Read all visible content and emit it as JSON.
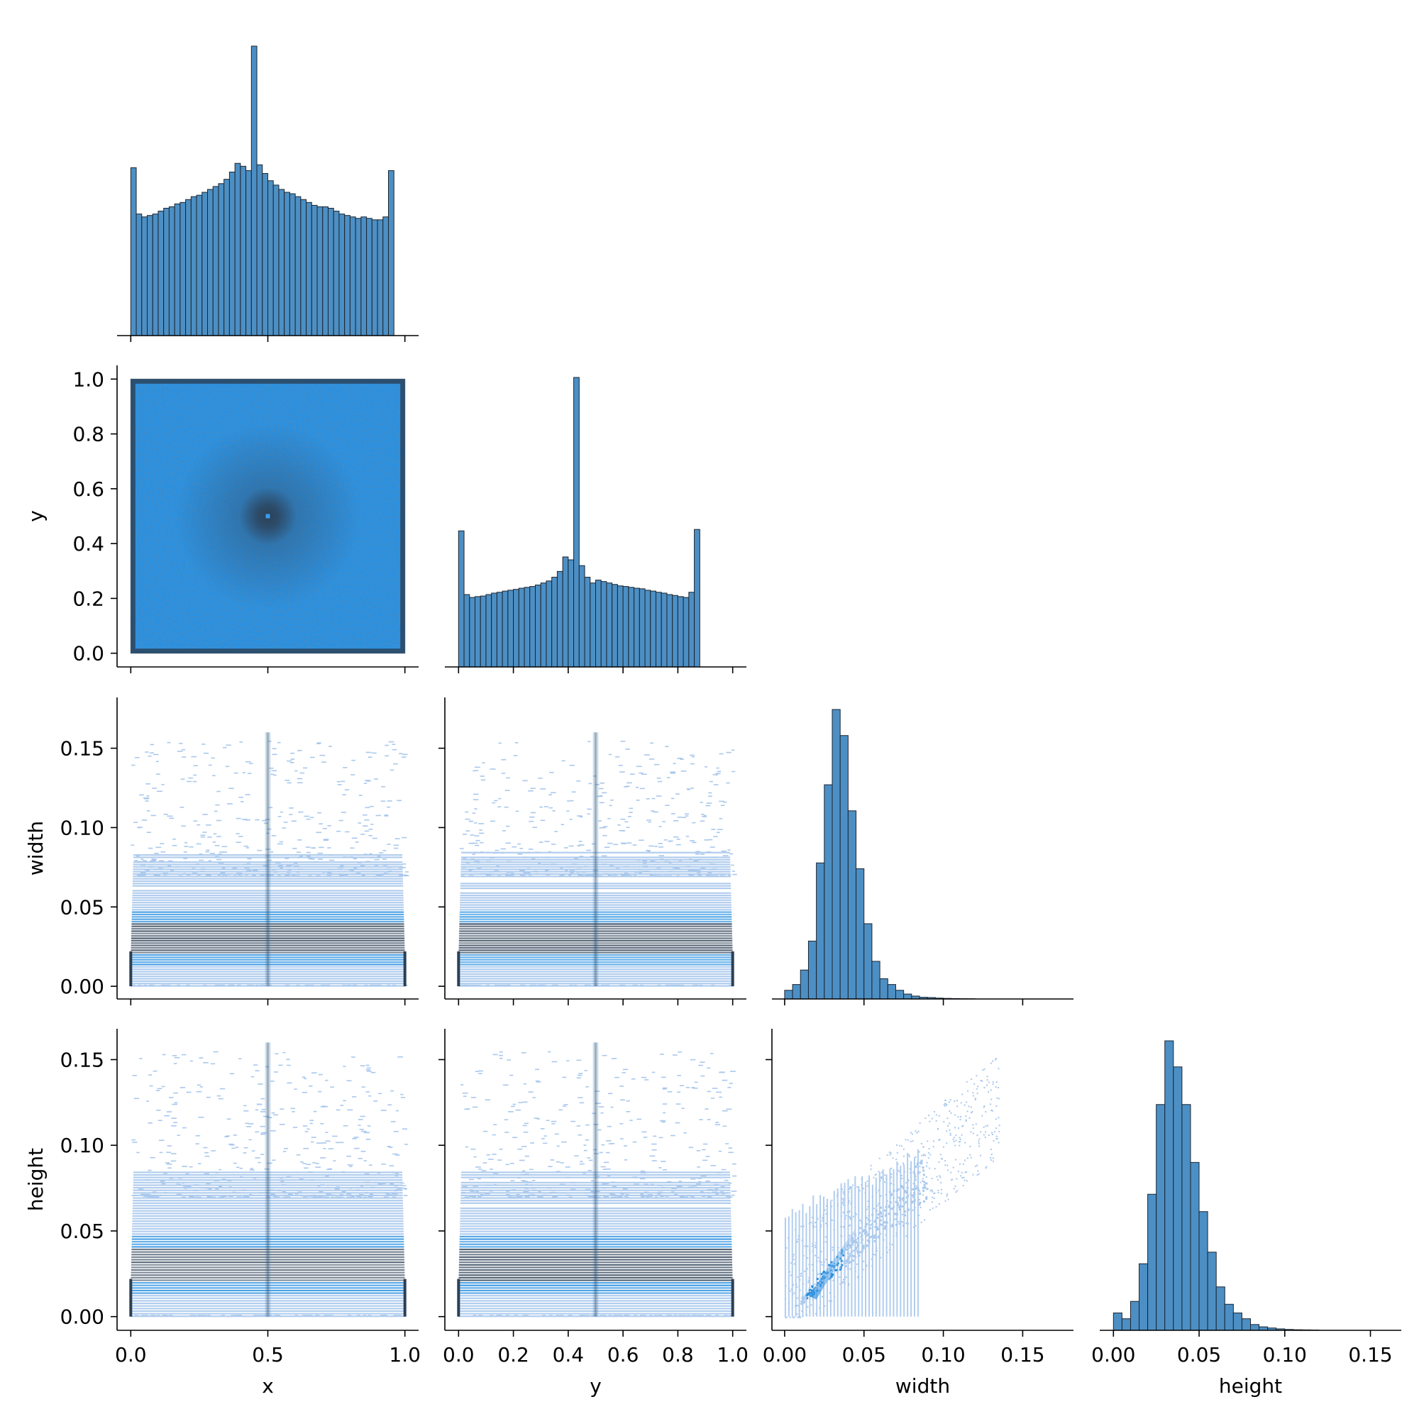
{
  "chart_data": {
    "type": "pairplot",
    "corner": true,
    "variables": [
      "x",
      "y",
      "width",
      "height"
    ],
    "colors": {
      "hist_fill": "#4c8fc4",
      "hist_edge": "#1c2530",
      "heat_low": "#a9c8ec",
      "heat_mid": "#2a90e0",
      "heat_high": "#2b3f55"
    },
    "axes": {
      "x": {
        "label": "x",
        "range": [
          -0.05,
          1.05
        ],
        "ticks": [
          0.0,
          0.5,
          1.0
        ],
        "tick_labels": [
          "0.0",
          "0.5",
          "1.0"
        ]
      },
      "y": {
        "label": "y",
        "range": [
          -0.05,
          1.05
        ],
        "ticks": [
          0.0,
          0.2,
          0.4,
          0.6,
          0.8,
          1.0
        ],
        "tick_labels": [
          "0.0",
          "0.2",
          "0.4",
          "0.6",
          "0.8",
          "1.0"
        ]
      },
      "width": {
        "label": "width",
        "range": [
          -0.008,
          0.182
        ],
        "ticks": [
          0.0,
          0.05,
          0.1,
          0.15
        ],
        "tick_labels": [
          "0.00",
          "0.05",
          "0.10",
          "0.15"
        ]
      },
      "height": {
        "label": "height",
        "range": [
          -0.008,
          0.168
        ],
        "ticks": [
          0.0,
          0.05,
          0.1,
          0.15
        ],
        "tick_labels": [
          "0.00",
          "0.05",
          "0.10",
          "0.15"
        ]
      }
    },
    "diagonal_histograms": [
      {
        "variable": "x",
        "bin_start": 0.0,
        "bin_width": 0.02,
        "counts": [
          0.58,
          0.42,
          0.41,
          0.415,
          0.42,
          0.43,
          0.44,
          0.445,
          0.455,
          0.46,
          0.47,
          0.48,
          0.485,
          0.495,
          0.505,
          0.515,
          0.525,
          0.54,
          0.565,
          0.595,
          0.585,
          0.57,
          1.0,
          0.59,
          0.56,
          0.535,
          0.52,
          0.505,
          0.495,
          0.49,
          0.48,
          0.47,
          0.46,
          0.45,
          0.445,
          0.445,
          0.44,
          0.43,
          0.42,
          0.415,
          0.41,
          0.405,
          0.41,
          0.405,
          0.4,
          0.4,
          0.41,
          0.57
        ]
      },
      {
        "variable": "y",
        "bin_start": 0.0,
        "bin_width": 0.02,
        "counts": [
          0.47,
          0.25,
          0.24,
          0.243,
          0.245,
          0.25,
          0.255,
          0.258,
          0.262,
          0.265,
          0.268,
          0.272,
          0.275,
          0.278,
          0.283,
          0.29,
          0.297,
          0.31,
          0.33,
          0.38,
          0.37,
          1.0,
          0.35,
          0.31,
          0.29,
          0.3,
          0.295,
          0.29,
          0.285,
          0.28,
          0.278,
          0.275,
          0.272,
          0.27,
          0.265,
          0.262,
          0.258,
          0.255,
          0.25,
          0.247,
          0.243,
          0.24,
          0.258,
          0.475
        ]
      },
      {
        "variable": "width",
        "bin_start": 0.0,
        "bin_width": 0.005,
        "counts": [
          0.03,
          0.05,
          0.1,
          0.2,
          0.47,
          0.74,
          1.0,
          0.91,
          0.65,
          0.45,
          0.26,
          0.13,
          0.07,
          0.05,
          0.03,
          0.017,
          0.01,
          0.006,
          0.005,
          0.003,
          0.002,
          0.0015,
          0.001,
          0.0007
        ]
      },
      {
        "variable": "height",
        "bin_start": 0.0,
        "bin_width": 0.005,
        "counts": [
          0.06,
          0.04,
          0.1,
          0.23,
          0.47,
          0.78,
          1.0,
          0.91,
          0.78,
          0.58,
          0.41,
          0.27,
          0.15,
          0.09,
          0.06,
          0.04,
          0.02,
          0.012,
          0.008,
          0.005,
          0.003,
          0.002,
          0.0015,
          0.001
        ]
      }
    ],
    "bivariate_histograms": [
      {
        "x": "x",
        "y": "y",
        "note": "uniform density with dense center peak at (0.5, 0.5) and dense border"
      },
      {
        "x": "x",
        "y": "width",
        "note": "dense band width 0.02–0.04, vertical ridge at x=0.5"
      },
      {
        "x": "y",
        "y": "width",
        "note": "dense band width 0.02–0.04, vertical ridge at y=0.5"
      },
      {
        "x": "x",
        "y": "height",
        "note": "dense band height 0.02–0.04, vertical ridge at x=0.5"
      },
      {
        "x": "y",
        "y": "height",
        "note": "dense band height 0.02–0.04, vertical ridge at y=0.5"
      },
      {
        "x": "width",
        "y": "height",
        "note": "positive correlation, dense diagonal near width≈height 0.01–0.05"
      }
    ]
  }
}
